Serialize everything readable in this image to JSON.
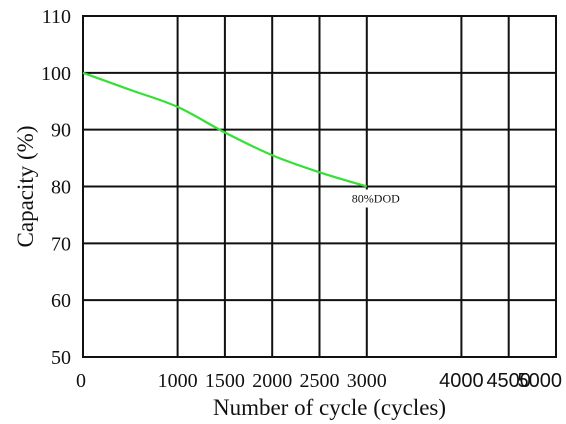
{
  "chart_data": {
    "type": "line",
    "title": "",
    "xlabel": "Number of cycle (cycles)",
    "ylabel": "Capacity (%)",
    "xlim": [
      0,
      5000
    ],
    "ylim": [
      50,
      110
    ],
    "x_ticks": [
      {
        "value": 0,
        "label": "0",
        "font": "serif"
      },
      {
        "value": 1000,
        "label": "1000",
        "font": "serif"
      },
      {
        "value": 1500,
        "label": "1500",
        "font": "serif"
      },
      {
        "value": 2000,
        "label": "2000",
        "font": "serif"
      },
      {
        "value": 2500,
        "label": "2500",
        "font": "serif"
      },
      {
        "value": 3000,
        "label": "3000",
        "font": "serif"
      },
      {
        "value": 4000,
        "label": "4000",
        "font": "sans"
      },
      {
        "value": 4500,
        "label": "4500",
        "font": "sans"
      },
      {
        "value": 5000,
        "label": "5000",
        "font": "sans"
      }
    ],
    "y_ticks": [
      50,
      60,
      70,
      80,
      90,
      100,
      110
    ],
    "grid": true,
    "series": [
      {
        "name": "",
        "color": "#33e033",
        "points": [
          {
            "x": 0,
            "y": 100
          },
          {
            "x": 500,
            "y": 97
          },
          {
            "x": 1000,
            "y": 94
          },
          {
            "x": 1500,
            "y": 89.5
          },
          {
            "x": 2000,
            "y": 85.5
          },
          {
            "x": 2500,
            "y": 82.5
          },
          {
            "x": 3000,
            "y": 80
          }
        ]
      }
    ],
    "annotations": [
      {
        "text": "80%DOD",
        "x": 3000,
        "y": 80
      }
    ]
  }
}
